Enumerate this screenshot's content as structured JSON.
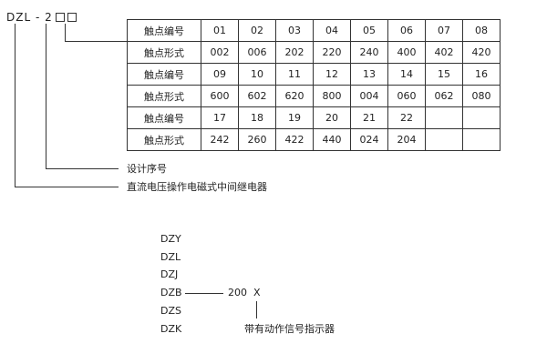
{
  "model_code": {
    "prefix": "DZL",
    "dash": "-",
    "series": "2"
  },
  "table": {
    "rows": [
      {
        "label": "触点编号",
        "cells": [
          "01",
          "02",
          "03",
          "04",
          "05",
          "06",
          "07",
          "08"
        ]
      },
      {
        "label": "触点形式",
        "cells": [
          "002",
          "006",
          "202",
          "220",
          "240",
          "400",
          "402",
          "420"
        ]
      },
      {
        "label": "触点编号",
        "cells": [
          "09",
          "10",
          "11",
          "12",
          "13",
          "14",
          "15",
          "16"
        ]
      },
      {
        "label": "触点形式",
        "cells": [
          "600",
          "602",
          "620",
          "800",
          "004",
          "060",
          "062",
          "080"
        ]
      },
      {
        "label": "触点编号",
        "cells": [
          "17",
          "18",
          "19",
          "20",
          "21",
          "22",
          "",
          ""
        ]
      },
      {
        "label": "触点形式",
        "cells": [
          "242",
          "260",
          "422",
          "440",
          "024",
          "204",
          "",
          ""
        ]
      }
    ]
  },
  "labels": {
    "design_number": "设计序号",
    "relay_type": "直流电压操作电磁式中间继电器"
  },
  "variants": {
    "models": [
      "DZY",
      "DZL",
      "DZJ",
      "DZB",
      "DZS",
      "DZK"
    ],
    "suffix_number": "200",
    "suffix_letter": "X",
    "suffix_label": "带有动作信号指示器"
  }
}
